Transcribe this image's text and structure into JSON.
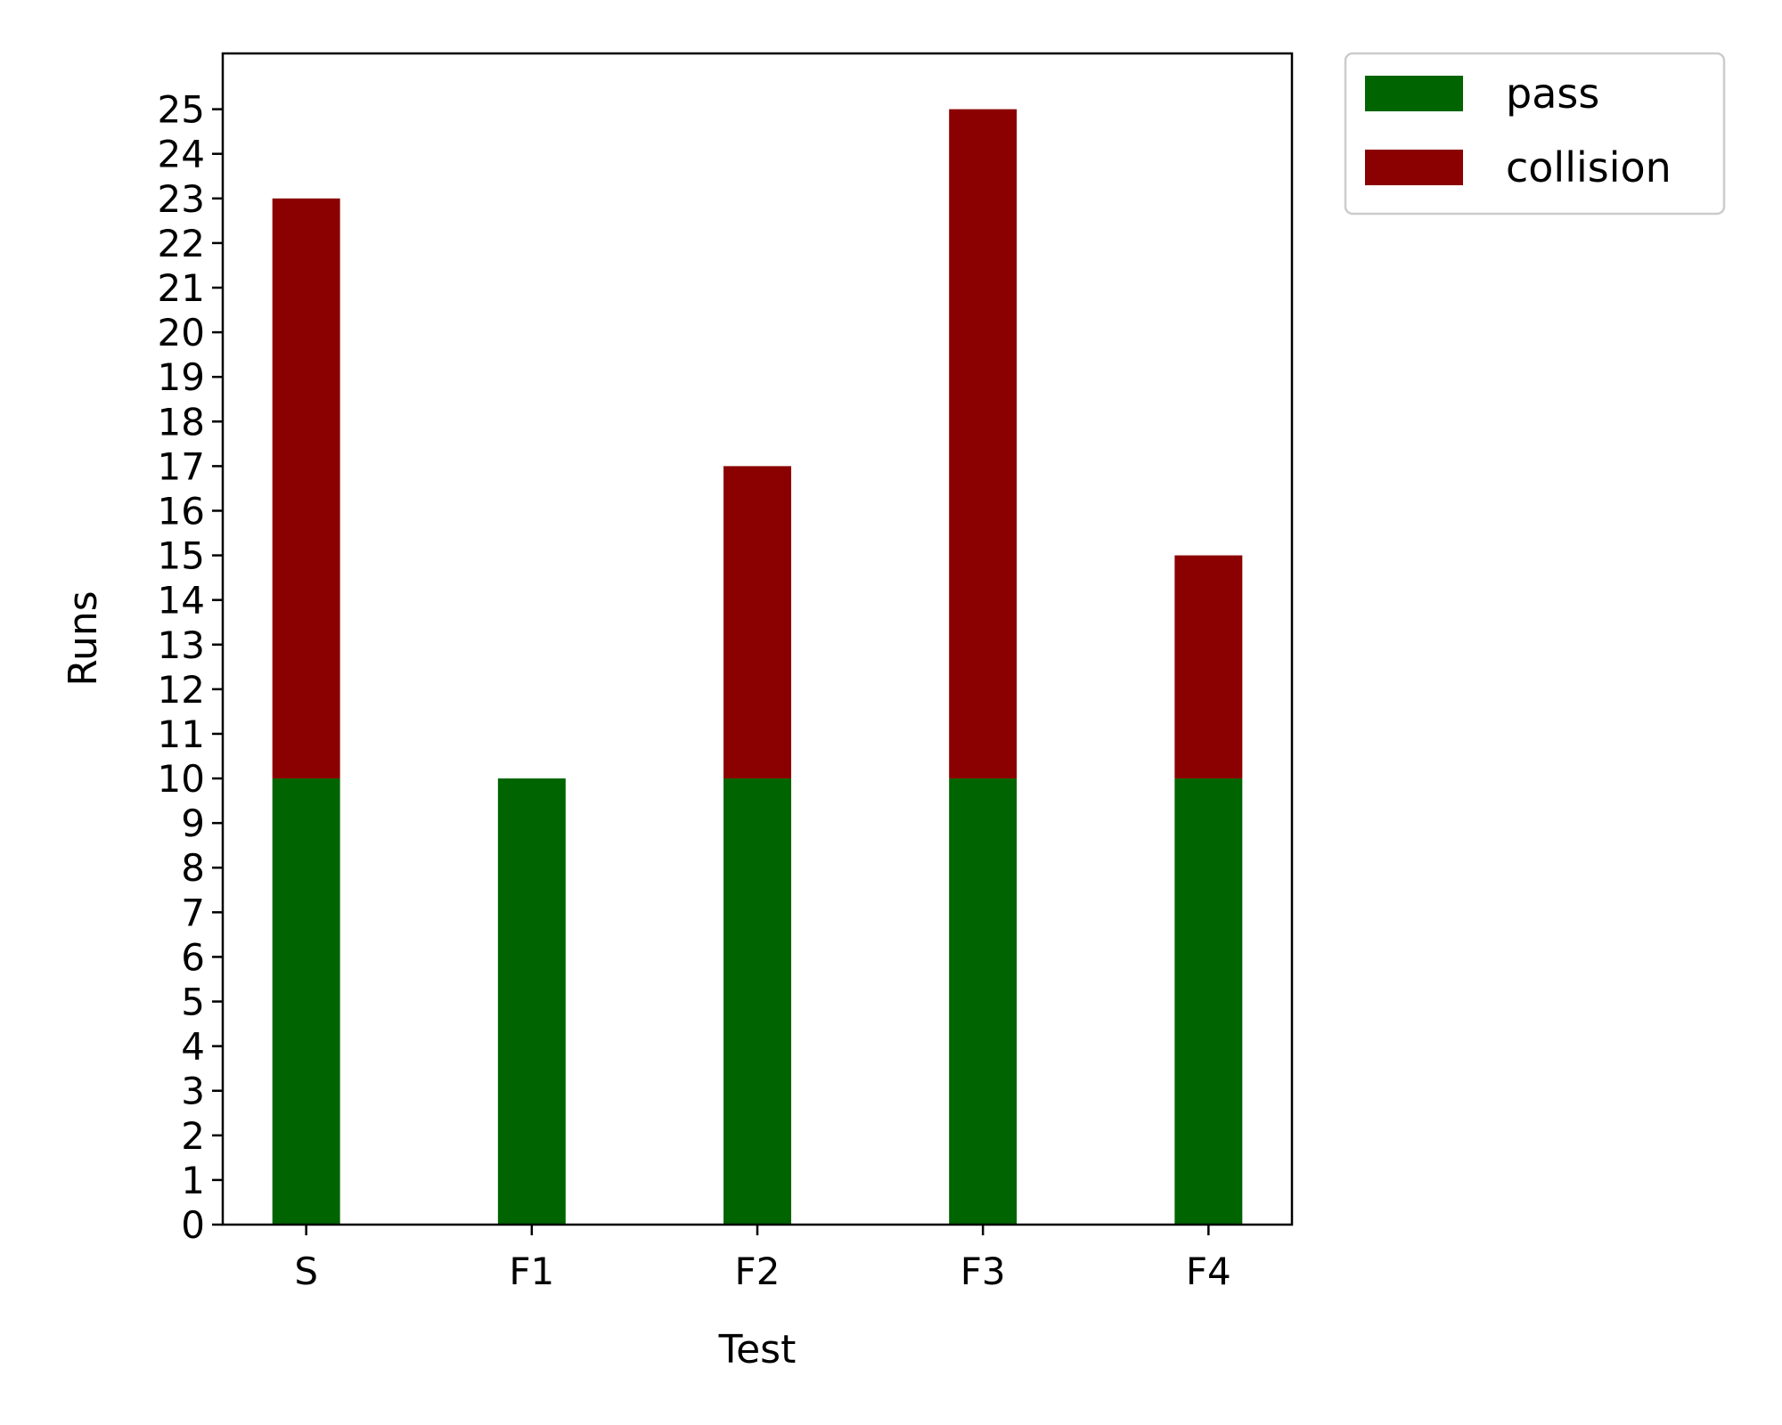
{
  "chart_data": {
    "type": "bar",
    "stacked": true,
    "categories": [
      "S",
      "F1",
      "F2",
      "F3",
      "F4"
    ],
    "series": [
      {
        "name": "pass",
        "color": "#006400",
        "values": [
          10,
          10,
          10,
          10,
          10
        ]
      },
      {
        "name": "collision",
        "color": "#8b0000",
        "values": [
          13,
          0,
          7,
          15,
          5
        ]
      }
    ],
    "xlabel": "Test",
    "ylabel": "Runs",
    "ylim": [
      0,
      26.25
    ],
    "yticks": [
      0,
      1,
      2,
      3,
      4,
      5,
      6,
      7,
      8,
      9,
      10,
      11,
      12,
      13,
      14,
      15,
      16,
      17,
      18,
      19,
      20,
      21,
      22,
      23,
      24,
      25
    ],
    "grid": false,
    "legend_position": "outside-top-right"
  }
}
